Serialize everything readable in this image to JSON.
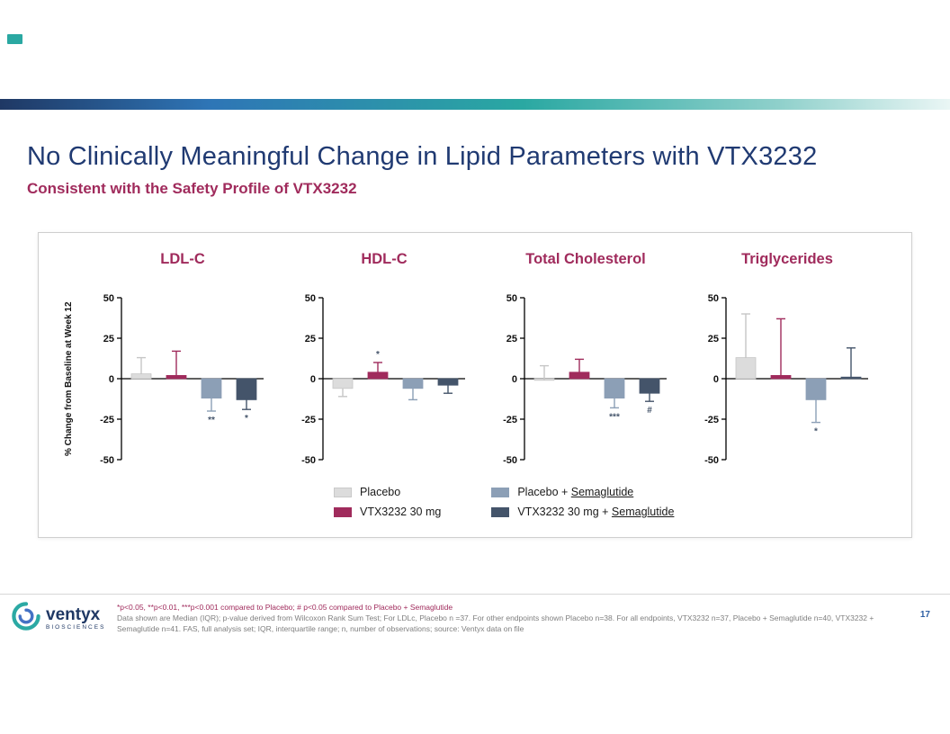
{
  "header": {
    "title": "No Clinically Meaningful Change in Lipid Parameters with VTX3232",
    "subtitle": "Consistent with the Safety Profile of VTX3232"
  },
  "figure": {
    "legend": [
      {
        "text": "Placebo",
        "underlined": "",
        "color": "#DCDCDC"
      },
      {
        "text": "VTX3232 30 mg",
        "underlined": "",
        "color": "#A02B5C"
      },
      {
        "text": "Placebo + ",
        "underlined": "Semaglutide",
        "color": "#8C9FB6"
      },
      {
        "text": "VTX3232 30 mg + ",
        "underlined": "Semaglutide",
        "color": "#44546A"
      }
    ]
  },
  "chart_data": [
    {
      "type": "bar",
      "title": "LDL-C",
      "ylabel": "% Change from Baseline at Week 12",
      "ylim": [
        -50,
        50
      ],
      "yticks": [
        50,
        25,
        0,
        -25,
        -50
      ],
      "series": [
        {
          "name": "Placebo",
          "value": 3,
          "whisker": 13,
          "marker": ""
        },
        {
          "name": "VTX3232 30 mg",
          "value": 2,
          "whisker": 17,
          "marker": ""
        },
        {
          "name": "Placebo + Semaglutide",
          "value": -12,
          "whisker": -20,
          "marker": "**"
        },
        {
          "name": "VTX3232 30 mg + Semaglutide",
          "value": -13,
          "whisker": -19,
          "marker": "*"
        }
      ]
    },
    {
      "type": "bar",
      "title": "HDL-C",
      "ylabel": "% Change from Baseline at Week 12",
      "ylim": [
        -50,
        50
      ],
      "yticks": [
        50,
        25,
        0,
        -25,
        -50
      ],
      "series": [
        {
          "name": "Placebo",
          "value": -6,
          "whisker": -11,
          "marker": ""
        },
        {
          "name": "VTX3232 30 mg",
          "value": 4,
          "whisker": 10,
          "marker": "*"
        },
        {
          "name": "Placebo + Semaglutide",
          "value": -6,
          "whisker": -13,
          "marker": ""
        },
        {
          "name": "VTX3232 30 mg + Semaglutide",
          "value": -4,
          "whisker": -9,
          "marker": ""
        }
      ]
    },
    {
      "type": "bar",
      "title": "Total Cholesterol",
      "ylabel": "% Change from Baseline at Week 12",
      "ylim": [
        -50,
        50
      ],
      "yticks": [
        50,
        25,
        0,
        -25,
        -50
      ],
      "series": [
        {
          "name": "Placebo",
          "value": -1,
          "whisker": 8,
          "marker": ""
        },
        {
          "name": "VTX3232 30 mg",
          "value": 4,
          "whisker": 12,
          "marker": ""
        },
        {
          "name": "Placebo + Semaglutide",
          "value": -12,
          "whisker": -18,
          "marker": "***"
        },
        {
          "name": "VTX3232 30 mg + Semaglutide",
          "value": -9,
          "whisker": -14,
          "marker": "#"
        }
      ]
    },
    {
      "type": "bar",
      "title": "Triglycerides",
      "ylabel": "% Change from Baseline at Week 12",
      "ylim": [
        -50,
        50
      ],
      "yticks": [
        50,
        25,
        0,
        -25,
        -50
      ],
      "series": [
        {
          "name": "Placebo",
          "value": 13,
          "whisker": 40,
          "marker": ""
        },
        {
          "name": "VTX3232 30 mg",
          "value": 2,
          "whisker": 37,
          "marker": ""
        },
        {
          "name": "Placebo + Semaglutide",
          "value": -13,
          "whisker": -27,
          "marker": "*"
        },
        {
          "name": "VTX3232 30 mg + Semaglutide",
          "value": 1,
          "whisker": 19,
          "marker": ""
        }
      ]
    }
  ],
  "footer": {
    "significance_note": "*p<0.05, **p<0.01, ***p<0.001 compared to Placebo; # p<0.05 compared to Placebo + Semaglutide",
    "data_note": "Data shown are Median (IQR); p-value derived from Wilcoxon Rank Sum Test; For LDLc, Placebo n =37. For other endpoints shown Placebo n=38.  For all endpoints, VTX3232 n=37, Placebo + Semaglutide n=40, VTX3232 + Semaglutide n=41. FAS, full analysis set; IQR, interquartile range; n, number of observations; source: Ventyx data on file",
    "page_number": "17",
    "logo_name": "ventyx",
    "logo_sub": "BIOSCIENCES"
  }
}
